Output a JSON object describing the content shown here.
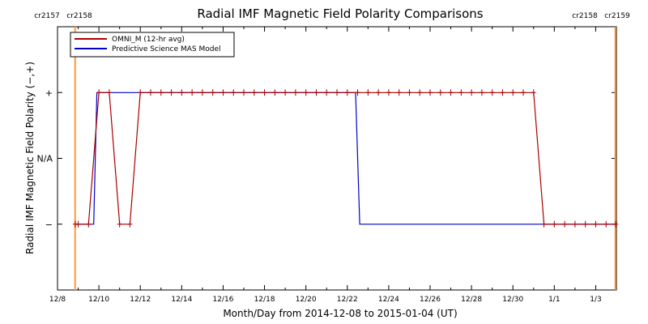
{
  "chart_data": {
    "type": "line",
    "title": "Radial IMF Magnetic Field Polarity Comparisons",
    "xlabel": "Month/Day from 2014-12-08 to 2015-01-04 (UT)",
    "ylabel": "Radial IMF Magnetic Field Polarity (−,+)",
    "x_range_days": [
      0,
      27
    ],
    "xtick_values": [
      0,
      2,
      4,
      6,
      8,
      10,
      12,
      14,
      16,
      18,
      20,
      22,
      24,
      26
    ],
    "xtick_labels": [
      "12/8",
      "12/10",
      "12/12",
      "12/14",
      "12/16",
      "12/18",
      "12/20",
      "12/22",
      "12/24",
      "12/26",
      "12/28",
      "12/30",
      "1/1",
      "1/3"
    ],
    "y_levels": [
      -1,
      0,
      1
    ],
    "ytick_labels": [
      "−",
      "N/A",
      "+"
    ],
    "ylim": [
      -2,
      2
    ],
    "grid": false,
    "legend_position": "top-left",
    "carrington_markers": [
      {
        "day": 0.85,
        "label_left": "cr2157",
        "label_right": "cr2158",
        "side": "left",
        "color": "#ff9933"
      },
      {
        "day": 26.95,
        "label_left": "cr2158",
        "label_right": "cr2159",
        "side": "right",
        "color": "#ff9933"
      }
    ],
    "series": [
      {
        "name": "OMNI_M (12-hr avg)",
        "color": "#aa0000",
        "marker": "plus",
        "x": [
          0.86,
          1.0,
          1.5,
          2.0,
          2.5,
          3.0,
          3.5,
          4.0,
          4.5,
          5.0,
          5.5,
          6.0,
          6.5,
          7.0,
          7.5,
          8.0,
          8.5,
          9.0,
          9.5,
          10.0,
          10.5,
          11.0,
          11.5,
          12.0,
          12.5,
          13.0,
          13.5,
          14.0,
          14.5,
          15.0,
          15.5,
          16.0,
          16.5,
          17.0,
          17.5,
          18.0,
          18.5,
          19.0,
          19.5,
          20.0,
          20.5,
          21.0,
          21.5,
          22.0,
          22.5,
          23.0,
          23.5,
          24.0,
          24.5,
          25.0,
          25.5,
          26.0,
          26.5,
          26.97
        ],
        "y": [
          -1,
          -1,
          -1,
          1,
          1,
          -1,
          -1,
          1,
          1,
          1,
          1,
          1,
          1,
          1,
          1,
          1,
          1,
          1,
          1,
          1,
          1,
          1,
          1,
          1,
          1,
          1,
          1,
          1,
          1,
          1,
          1,
          1,
          1,
          1,
          1,
          1,
          1,
          1,
          1,
          1,
          1,
          1,
          1,
          1,
          1,
          1,
          -1,
          -1,
          -1,
          -1,
          -1,
          -1,
          -1,
          -1
        ]
      },
      {
        "name": "Predictive Science MAS Model",
        "color": "#0000cc",
        "marker": "none",
        "x": [
          0.86,
          1.75,
          1.9,
          14.4,
          14.6,
          26.97
        ],
        "y": [
          -1,
          -1,
          1,
          1,
          -1,
          -1
        ]
      }
    ]
  }
}
